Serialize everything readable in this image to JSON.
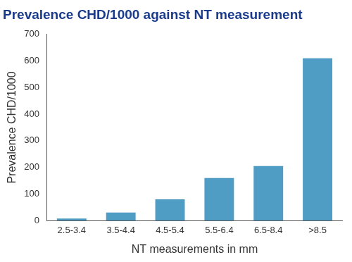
{
  "chart_data": {
    "type": "bar",
    "title": "Prevalence CHD/1000 against NT measurement",
    "x_label": "NT measurements in mm",
    "y_label": "Prevalence CHD/1000",
    "categories": [
      "2.5-3.4",
      "3.5-4.4",
      "4.5-5.4",
      "5.5-6.4",
      "6.5-8.4",
      ">8.5"
    ],
    "values": [
      8,
      30,
      80,
      160,
      205,
      610
    ],
    "color": "#4f9cc4",
    "ylim": [
      0,
      700
    ],
    "yticks": [
      0,
      100,
      200,
      300,
      400,
      500,
      600,
      700
    ],
    "grid": false
  }
}
